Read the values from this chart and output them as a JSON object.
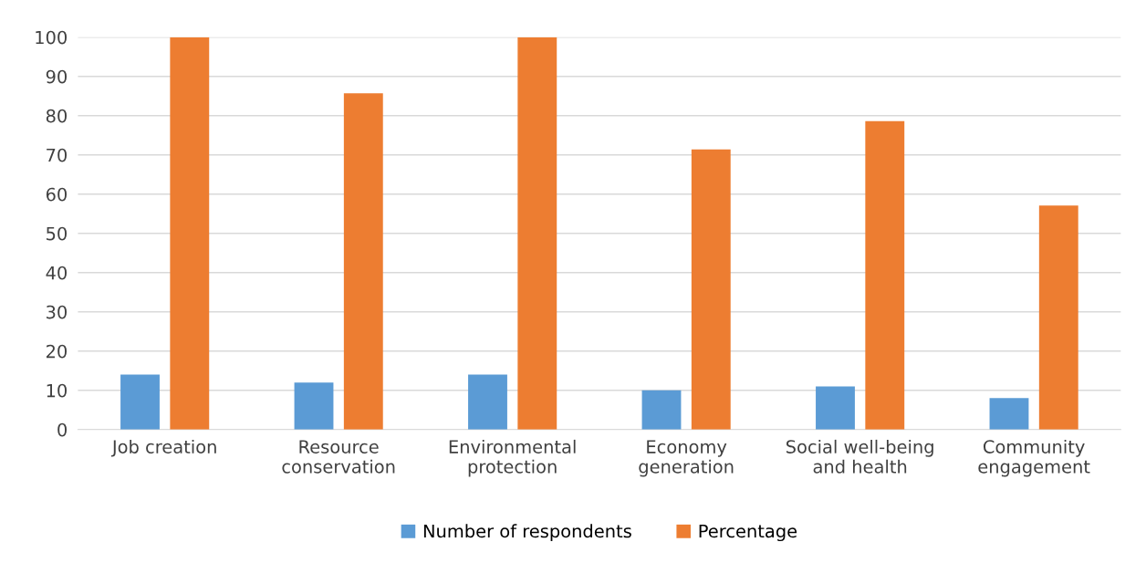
{
  "chart_data": {
    "type": "bar",
    "categories": [
      "Job creation",
      "Resource\nconservation",
      "Environmental\nprotection",
      "Economy\ngeneration",
      "Social well-being\nand health",
      "Community\nengagement"
    ],
    "series": [
      {
        "name": "Number of respondents",
        "color": "#5b9bd5",
        "values": [
          14,
          12,
          14,
          10,
          11,
          8
        ]
      },
      {
        "name": "Percentage",
        "color": "#ed7d31",
        "values": [
          100,
          85.7,
          100,
          71.4,
          78.6,
          57.1
        ]
      }
    ],
    "ylim": [
      0,
      100
    ],
    "yticks": [
      0,
      10,
      20,
      30,
      40,
      50,
      60,
      70,
      80,
      90,
      100
    ],
    "grid": "y",
    "legend": "bottom"
  }
}
